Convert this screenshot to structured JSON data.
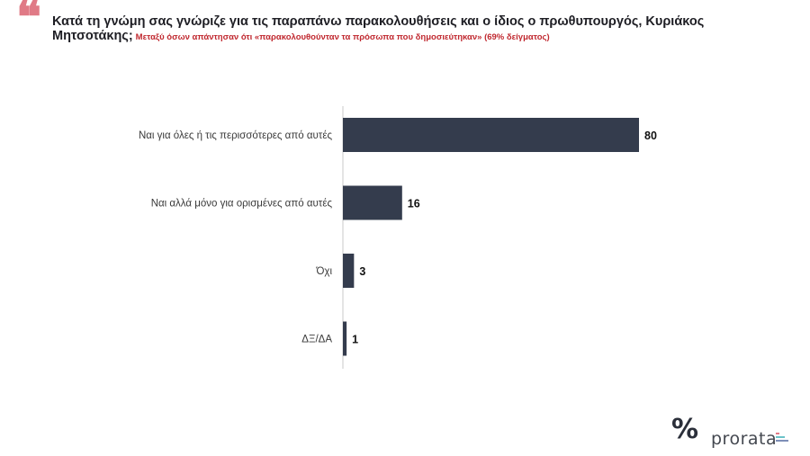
{
  "header": {
    "quote_glyph": "❝",
    "question": "Κατά τη γνώμη σας γνώριζε για τις παραπάνω παρακολουθήσεις και ο ίδιος ο πρωθυπουργός, Κυριάκος Μητσοτάκης;",
    "subtitle": "Μεταξύ όσων απάντησαν ότι «παρακολουθούνταν τα πρόσωπα που δημοσιεύτηκαν» (69% δείγματος)"
  },
  "chart_data": {
    "type": "bar",
    "orientation": "horizontal",
    "categories": [
      "Ναι για όλες ή τις περισσότερες από αυτές",
      "Ναι αλλά μόνο για ορισμένες από αυτές",
      "Όχι",
      "ΔΞ/ΔΑ"
    ],
    "values": [
      80,
      16,
      3,
      1
    ],
    "xlim": [
      0,
      80
    ],
    "grid": false,
    "legend": "none",
    "colors": {
      "bar": "#343c4d",
      "axis": "#c9c9c9"
    }
  },
  "branding": {
    "logo_mark": "%",
    "logo_text": "prorata",
    "logo_bar_colors": [
      "#e37b87",
      "#6cc3c9",
      "#7e8fb8"
    ]
  }
}
